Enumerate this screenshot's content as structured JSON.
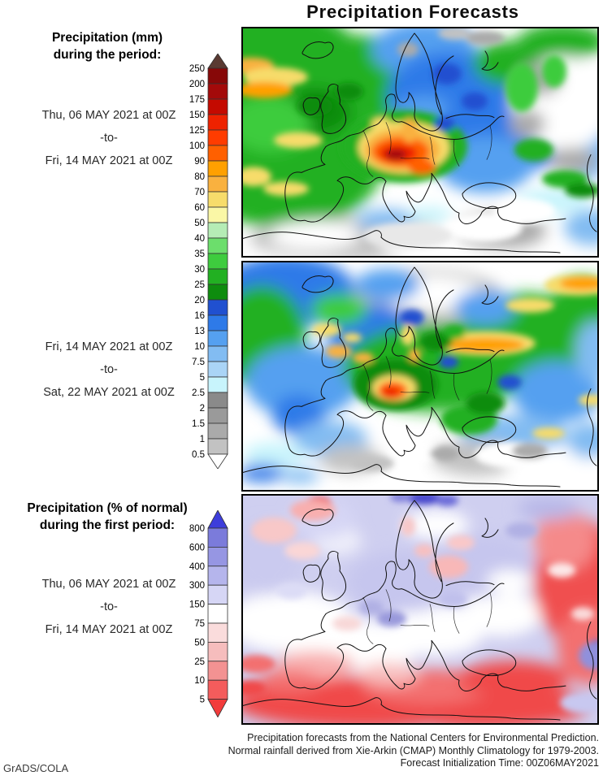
{
  "title": "Precipitation Forecasts",
  "legend_mm": {
    "heading": [
      "Precipitation (mm)",
      "during the period:"
    ],
    "period1": {
      "from": "Thu, 06 MAY 2021 at 00Z",
      "sep": "-to-",
      "to": "Fri, 14 MAY 2021 at 00Z"
    },
    "period2": {
      "from": "Fri, 14 MAY 2021 at 00Z",
      "sep": "-to-",
      "to": "Sat, 22 MAY 2021 at 00Z"
    },
    "colorbar": {
      "stops": [
        "250",
        "200",
        "175",
        "150",
        "125",
        "100",
        "90",
        "80",
        "70",
        "60",
        "50",
        "40",
        "35",
        "30",
        "25",
        "20",
        "16",
        "13",
        "10",
        "7.5",
        "5",
        "2.5",
        "2",
        "1.5",
        "1",
        "0.5"
      ],
      "cells": [
        "#870808",
        "#A30A0A",
        "#C40A00",
        "#EE2200",
        "#FF3C00",
        "#FF6000",
        "#FFA000",
        "#F9B13F",
        "#F7DC6B",
        "#FAF7A6",
        "#B5ECB5",
        "#6CDE6C",
        "#3ECC3E",
        "#22B022",
        "#0E8C0E",
        "#2050D0",
        "#2E7AE8",
        "#55A0F0",
        "#82BCF2",
        "#AAD4F6",
        "#C8F4FC",
        "#8A8A8A",
        "#9A9A9A",
        "#AAAAAA",
        "#C2C2C2"
      ],
      "top_arrow": "#5A3A32",
      "bottom_arrow": "#FFFFFF"
    }
  },
  "legend_pct": {
    "heading": [
      "Precipitation (% of normal)",
      "during the first period:"
    ],
    "period": {
      "from": "Thu, 06 MAY 2021 at 00Z",
      "sep": "-to-",
      "to": "Fri, 14 MAY 2021 at 00Z"
    },
    "colorbar": {
      "stops": [
        "800",
        "600",
        "400",
        "300",
        "150",
        "75",
        "50",
        "25",
        "10",
        "5"
      ],
      "cells": [
        "#7B7BDB",
        "#9696E3",
        "#B5B5EC",
        "#D6D6F5",
        "#FFFFFF",
        "#FADCDC",
        "#F6BDBD",
        "#F39292",
        "#F45C5C"
      ],
      "top_arrow": "#3D3DDB",
      "bottom_arrow": "#F23B3B"
    }
  },
  "maps": {
    "period1_mm": {
      "base": "#FFFFFF",
      "soft": [
        [
          40,
          55,
          115,
          80,
          "#22B022"
        ],
        [
          55,
          165,
          120,
          85,
          "#22B022"
        ],
        [
          150,
          65,
          85,
          55,
          "#22B022"
        ],
        [
          90,
          105,
          45,
          30,
          "#0E8C0E"
        ],
        [
          35,
          120,
          50,
          35,
          "#3ECC3E"
        ],
        [
          225,
          28,
          65,
          35,
          "#55A0F0"
        ],
        [
          255,
          85,
          75,
          55,
          "#2E7AE8"
        ],
        [
          225,
          120,
          45,
          35,
          "#55A0F0"
        ],
        [
          330,
          125,
          85,
          55,
          "#2E7AE8"
        ],
        [
          300,
          170,
          60,
          35,
          "#55A0F0"
        ],
        [
          395,
          18,
          55,
          22,
          "#22B022"
        ],
        [
          330,
          45,
          45,
          28,
          "#22B022"
        ],
        [
          425,
          135,
          35,
          55,
          "#82BCF2"
        ],
        [
          430,
          90,
          30,
          30,
          "#C8F4FC"
        ],
        [
          395,
          95,
          62,
          58,
          "#FFFFFF"
        ],
        [
          368,
          65,
          26,
          20,
          "#AAAAAA"
        ],
        [
          352,
          120,
          22,
          18,
          "#AAAAAA"
        ],
        [
          408,
          165,
          30,
          16,
          "#AAAAAA"
        ],
        [
          140,
          262,
          130,
          26,
          "#C2C2C2"
        ],
        [
          90,
          258,
          55,
          18,
          "#FFFFFF"
        ],
        [
          255,
          268,
          85,
          20,
          "#FFFFFF"
        ],
        [
          320,
          252,
          55,
          22,
          "#AAAAAA"
        ],
        [
          385,
          215,
          45,
          16,
          "#C8F4FC"
        ],
        [
          432,
          248,
          35,
          22,
          "#82BCF2"
        ],
        [
          180,
          238,
          40,
          13,
          "#82BCF2"
        ],
        [
          232,
          232,
          28,
          10,
          "#C8F4FC"
        ]
      ],
      "detail": [
        [
          12,
          48,
          28,
          10,
          "#F9B13F"
        ],
        [
          42,
          62,
          40,
          12,
          "#F7DC6B"
        ],
        [
          28,
          78,
          35,
          10,
          "#FFA000"
        ],
        [
          70,
          140,
          30,
          10,
          "#F7DC6B"
        ],
        [
          15,
          185,
          22,
          12,
          "#F7DC6B"
        ],
        [
          55,
          200,
          28,
          9,
          "#F7DC6B"
        ],
        [
          200,
          148,
          78,
          45,
          "#22B022"
        ],
        [
          200,
          149,
          56,
          32,
          "#F7DC6B"
        ],
        [
          198,
          152,
          46,
          26,
          "#F9B13F"
        ],
        [
          196,
          154,
          35,
          18,
          "#FF6000"
        ],
        [
          193,
          156,
          23,
          11,
          "#EE2200"
        ],
        [
          190,
          158,
          13,
          7,
          "#A30A0A"
        ],
        [
          222,
          173,
          17,
          9,
          "#FF6000"
        ],
        [
          207,
          128,
          10,
          15,
          "#F9B13F"
        ],
        [
          172,
          120,
          12,
          8,
          "#F7DC6B"
        ],
        [
          253,
          58,
          18,
          13,
          "#2050D0"
        ],
        [
          287,
          92,
          16,
          11,
          "#2050D0"
        ],
        [
          250,
          120,
          13,
          9,
          "#2050D0"
        ],
        [
          360,
          152,
          24,
          14,
          "#22B022"
        ],
        [
          398,
          188,
          28,
          11,
          "#22B022"
        ],
        [
          420,
          202,
          22,
          9,
          "#0E8C0E"
        ],
        [
          300,
          14,
          24,
          9,
          "#AAAAAA"
        ],
        [
          262,
          8,
          20,
          8,
          "#C2C2C2"
        ],
        [
          205,
          28,
          13,
          9,
          "#AAAAAA"
        ],
        [
          348,
          228,
          38,
          16,
          "#FFFFFF"
        ],
        [
          298,
          248,
          48,
          18,
          "#FFFFFF"
        ],
        [
          205,
          258,
          55,
          16,
          "#E8E8E8"
        ],
        [
          90,
          98,
          22,
          13,
          "#0E8C0E"
        ],
        [
          132,
          80,
          18,
          11,
          "#0E8C0E"
        ],
        [
          345,
          75,
          20,
          30,
          "#3ECC3E"
        ],
        [
          385,
          55,
          15,
          20,
          "#3ECC3E"
        ]
      ]
    },
    "period2_mm": {
      "base": "#FFFFFF",
      "soft": [
        [
          55,
          38,
          85,
          45,
          "#2E7AE8"
        ],
        [
          25,
          95,
          55,
          65,
          "#22B022"
        ],
        [
          75,
          150,
          70,
          45,
          "#55A0F0"
        ],
        [
          230,
          48,
          95,
          38,
          "#C2C2C2"
        ],
        [
          233,
          40,
          62,
          22,
          "#FFFFFF"
        ],
        [
          160,
          88,
          55,
          35,
          "#2E7AE8"
        ],
        [
          240,
          132,
          115,
          55,
          "#22B022"
        ],
        [
          350,
          95,
          85,
          55,
          "#22B022"
        ],
        [
          420,
          58,
          40,
          38,
          "#22B022"
        ],
        [
          300,
          58,
          38,
          22,
          "#55A0F0"
        ],
        [
          388,
          162,
          55,
          38,
          "#55A0F0"
        ],
        [
          335,
          215,
          65,
          25,
          "#82BCF2"
        ],
        [
          70,
          190,
          32,
          25,
          "#2E7AE8"
        ],
        [
          110,
          220,
          45,
          22,
          "#82BCF2"
        ],
        [
          200,
          256,
          85,
          22,
          "#FFFFFF"
        ],
        [
          288,
          244,
          55,
          22,
          "#C2C2C2"
        ],
        [
          390,
          252,
          65,
          22,
          "#FFFFFF"
        ],
        [
          135,
          245,
          38,
          18,
          "#C2C2C2"
        ],
        [
          40,
          240,
          38,
          16,
          "#C8F4FC"
        ],
        [
          25,
          262,
          28,
          11,
          "#2E7AE8"
        ],
        [
          72,
          266,
          24,
          9,
          "#82BCF2"
        ],
        [
          435,
          112,
          24,
          38,
          "#82BCF2"
        ],
        [
          428,
          222,
          28,
          22,
          "#82BCF2"
        ],
        [
          180,
          30,
          40,
          20,
          "#55A0F0"
        ],
        [
          120,
          60,
          35,
          20,
          "#3ECC3E"
        ]
      ],
      "detail": [
        [
          300,
          102,
          62,
          15,
          "#F7DC6B"
        ],
        [
          300,
          104,
          48,
          9,
          "#FFA000"
        ],
        [
          415,
          30,
          42,
          13,
          "#F7DC6B"
        ],
        [
          420,
          28,
          28,
          8,
          "#FFA000"
        ],
        [
          355,
          55,
          30,
          9,
          "#F7DC6B"
        ],
        [
          105,
          85,
          18,
          8,
          "#F7DC6B"
        ],
        [
          120,
          112,
          16,
          8,
          "#F9B13F"
        ],
        [
          136,
          95,
          12,
          6,
          "#F7DC6B"
        ],
        [
          150,
          120,
          13,
          7,
          "#F9B13F"
        ],
        [
          205,
          92,
          9,
          13,
          "#F7DC6B"
        ],
        [
          213,
          116,
          8,
          8,
          "#F9B13F"
        ],
        [
          190,
          153,
          52,
          32,
          "#0E8C0E"
        ],
        [
          188,
          157,
          27,
          16,
          "#F7DC6B"
        ],
        [
          186,
          160,
          18,
          11,
          "#FF6000"
        ],
        [
          184,
          162,
          10,
          6,
          "#EE2200"
        ],
        [
          280,
          196,
          35,
          19,
          "#22B022"
        ],
        [
          300,
          176,
          24,
          14,
          "#0E8C0E"
        ],
        [
          210,
          70,
          15,
          10,
          "#2050D0"
        ],
        [
          255,
          125,
          12,
          8,
          "#2050D0"
        ],
        [
          330,
          150,
          15,
          9,
          "#2050D0"
        ],
        [
          430,
          172,
          15,
          7,
          "#F7DC6B"
        ],
        [
          378,
          213,
          20,
          7,
          "#F7DC6B"
        ],
        [
          215,
          237,
          32,
          13,
          "#FFFFFF"
        ],
        [
          332,
          240,
          45,
          16,
          "#FFFFFF"
        ],
        [
          355,
          235,
          22,
          10,
          "#AAAAAA"
        ],
        [
          162,
          250,
          26,
          10,
          "#C2C2C2"
        ],
        [
          250,
          238,
          18,
          9,
          "#AAAAAA"
        ],
        [
          240,
          100,
          20,
          12,
          "#0E8C0E"
        ],
        [
          262,
          88,
          14,
          9,
          "#22B022"
        ]
      ]
    },
    "period1_pct": {
      "base": "#CFCFF0",
      "soft": [
        [
          60,
          158,
          80,
          38,
          "#FFFFFF"
        ],
        [
          150,
          188,
          70,
          32,
          "#FFFFFF"
        ],
        [
          240,
          168,
          60,
          32,
          "#FFFFFF"
        ],
        [
          320,
          148,
          50,
          28,
          "#FFFFFF"
        ],
        [
          180,
          118,
          40,
          22,
          "#F2F2FA"
        ],
        [
          150,
          258,
          160,
          32,
          "#F04848"
        ],
        [
          300,
          262,
          125,
          28,
          "#F04848"
        ],
        [
          230,
          238,
          80,
          22,
          "#F37070"
        ],
        [
          335,
          228,
          68,
          22,
          "#F04848"
        ],
        [
          415,
          108,
          55,
          78,
          "#F05050"
        ],
        [
          428,
          188,
          40,
          48,
          "#F37070"
        ],
        [
          398,
          58,
          38,
          38,
          "#F58A8A"
        ],
        [
          90,
          212,
          50,
          18,
          "#F8AFAF"
        ],
        [
          182,
          222,
          38,
          14,
          "#F8BFBF"
        ],
        [
          58,
          232,
          40,
          14,
          "#F37070"
        ],
        [
          200,
          108,
          70,
          38,
          "#C6C6EE"
        ],
        [
          300,
          88,
          60,
          38,
          "#C6C6EE"
        ],
        [
          378,
          18,
          38,
          14,
          "#B8B8E8"
        ],
        [
          240,
          38,
          40,
          18,
          "#FFFFFF"
        ],
        [
          118,
          58,
          30,
          18,
          "#EFEFFA"
        ],
        [
          330,
          108,
          28,
          14,
          "#FFFFFF"
        ],
        [
          30,
          80,
          45,
          45,
          "#CACAEF"
        ],
        [
          100,
          30,
          40,
          25,
          "#D6D6F5"
        ]
      ],
      "detail": [
        [
          95,
          12,
          16,
          9,
          "#F04848"
        ],
        [
          88,
          20,
          28,
          13,
          "#F8AFAF"
        ],
        [
          40,
          45,
          28,
          16,
          "#F8C8C8"
        ],
        [
          75,
          70,
          22,
          11,
          "#FAD6D6"
        ],
        [
          225,
          5,
          22,
          8,
          "#4A4ACC"
        ],
        [
          253,
          8,
          14,
          7,
          "#6A6AD8"
        ],
        [
          196,
          4,
          13,
          6,
          "#8080DC"
        ],
        [
          185,
          154,
          18,
          10,
          "#9A9ADC"
        ],
        [
          160,
          140,
          15,
          9,
          "#B0B0E4"
        ],
        [
          345,
          45,
          20,
          10,
          "#B0B0E4"
        ],
        [
          260,
          130,
          18,
          10,
          "#C0C0EC"
        ],
        [
          255,
          90,
          24,
          14,
          "#F8B8B8"
        ],
        [
          270,
          60,
          17,
          9,
          "#FAC8C8"
        ],
        [
          225,
          70,
          12,
          8,
          "#F8C0C0"
        ],
        [
          205,
          40,
          9,
          12,
          "#F8C8C8"
        ],
        [
          437,
          193,
          11,
          13,
          "#5A5AD0"
        ],
        [
          434,
          200,
          19,
          17,
          "#9090DC"
        ],
        [
          420,
          258,
          28,
          13,
          "#C8C8F0"
        ],
        [
          394,
          94,
          17,
          9,
          "#FCE8E8"
        ],
        [
          420,
          148,
          14,
          8,
          "#FADCDC"
        ],
        [
          18,
          210,
          24,
          11,
          "#F37070"
        ],
        [
          10,
          240,
          20,
          10,
          "#F04848"
        ],
        [
          130,
          160,
          18,
          9,
          "#F8D8D8"
        ],
        [
          62,
          120,
          18,
          10,
          "#DCDCF6"
        ]
      ]
    }
  },
  "footer": {
    "lines": [
      "Precipitation forecasts from the National Centers for Environmental Prediction.",
      "Normal rainfall derived from Xie-Arkin (CMAP) Monthly Climatology for 1979-2003.",
      "Forecast Initialization Time: 00Z06MAY2021"
    ],
    "credit": "GrADS/COLA"
  }
}
